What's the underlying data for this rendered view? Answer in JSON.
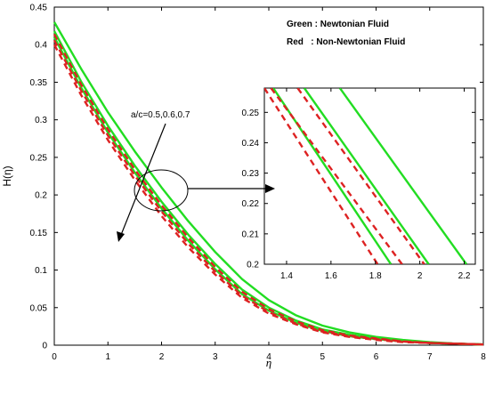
{
  "chart_data": {
    "type": "line",
    "xlabel": "η",
    "ylabel": "H(η)",
    "xlim": [
      0,
      8
    ],
    "ylim": [
      0,
      0.45
    ],
    "x_ticks": [
      "0",
      "1",
      "2",
      "3",
      "4",
      "5",
      "6",
      "7",
      "8"
    ],
    "y_ticks": [
      "0",
      "0.05",
      "0.1",
      "0.15",
      "0.2",
      "0.25",
      "0.3",
      "0.35",
      "0.4",
      "0.45"
    ],
    "legend": [
      {
        "label": "Green : Newtonian Fluid",
        "color": "#22dd22",
        "style": "solid"
      },
      {
        "label": "Red   : Non-Newtonian Fluid",
        "color": "#dd2222",
        "style": "dashed"
      }
    ],
    "annotation": "a/c=0.5,0.6,0.7",
    "x": [
      0,
      0.5,
      1,
      1.5,
      2,
      2.5,
      3,
      3.5,
      4,
      4.5,
      5,
      5.5,
      6,
      6.5,
      7,
      7.5,
      8
    ],
    "series": [
      {
        "name": "Green : Newtonian Fluid",
        "color": "#22dd22",
        "style": "solid",
        "values": [
          0.43,
          0.368,
          0.31,
          0.258,
          0.21,
          0.165,
          0.124,
          0.088,
          0.06,
          0.04,
          0.026,
          0.017,
          0.011,
          0.007,
          0.004,
          0.002,
          0.001
        ]
      },
      {
        "name": "Green : Newtonian Fluid",
        "color": "#22dd22",
        "style": "solid",
        "values": [
          0.418,
          0.351,
          0.292,
          0.239,
          0.191,
          0.147,
          0.108,
          0.074,
          0.05,
          0.033,
          0.021,
          0.014,
          0.009,
          0.006,
          0.003,
          0.002,
          0.001
        ]
      },
      {
        "name": "Green : Newtonian Fluid",
        "color": "#22dd22",
        "style": "solid",
        "values": [
          0.41,
          0.343,
          0.283,
          0.23,
          0.182,
          0.139,
          0.101,
          0.068,
          0.046,
          0.03,
          0.019,
          0.012,
          0.008,
          0.005,
          0.003,
          0.002,
          0.001
        ]
      },
      {
        "name": "Red   : Non-Newtonian Fluid",
        "color": "#dd2222",
        "style": "dashed",
        "values": [
          0.414,
          0.347,
          0.287,
          0.234,
          0.186,
          0.143,
          0.104,
          0.071,
          0.048,
          0.032,
          0.02,
          0.013,
          0.009,
          0.005,
          0.003,
          0.002,
          0.001
        ]
      },
      {
        "name": "Red   : Non-Newtonian Fluid",
        "color": "#dd2222",
        "style": "dashed",
        "values": [
          0.406,
          0.339,
          0.279,
          0.226,
          0.178,
          0.135,
          0.098,
          0.066,
          0.044,
          0.029,
          0.018,
          0.012,
          0.008,
          0.005,
          0.003,
          0.002,
          0.001
        ]
      },
      {
        "name": "Red   : Non-Newtonian Fluid",
        "color": "#dd2222",
        "style": "dashed",
        "values": [
          0.4,
          0.333,
          0.273,
          0.22,
          0.172,
          0.13,
          0.094,
          0.063,
          0.042,
          0.028,
          0.017,
          0.011,
          0.007,
          0.004,
          0.003,
          0.002,
          0.001
        ]
      }
    ],
    "inset": {
      "xlim": [
        1.3,
        2.25
      ],
      "ylim": [
        0.2,
        0.258
      ],
      "x_ticks": [
        "1.4",
        "1.6",
        "1.8",
        "2",
        "2.2"
      ],
      "y_ticks": [
        "0.2",
        "0.21",
        "0.22",
        "0.23",
        "0.24",
        "0.25"
      ],
      "lines": [
        {
          "color": "#22dd22",
          "style": "solid",
          "x_at_top": 1.64,
          "x_at_bottom": 2.21
        },
        {
          "color": "#22dd22",
          "style": "solid",
          "x_at_top": 1.48,
          "x_at_bottom": 2.04
        },
        {
          "color": "#22dd22",
          "style": "solid",
          "x_at_top": 1.34,
          "x_at_bottom": 1.87
        },
        {
          "color": "#dd2222",
          "style": "dashed",
          "x_at_top": 1.45,
          "x_at_bottom": 2.02
        },
        {
          "color": "#dd2222",
          "style": "dashed",
          "x_at_top": 1.33,
          "x_at_bottom": 1.92
        },
        {
          "color": "#dd2222",
          "style": "dashed",
          "x_at_top": 1.3,
          "x_at_bottom": 1.81
        }
      ]
    }
  }
}
